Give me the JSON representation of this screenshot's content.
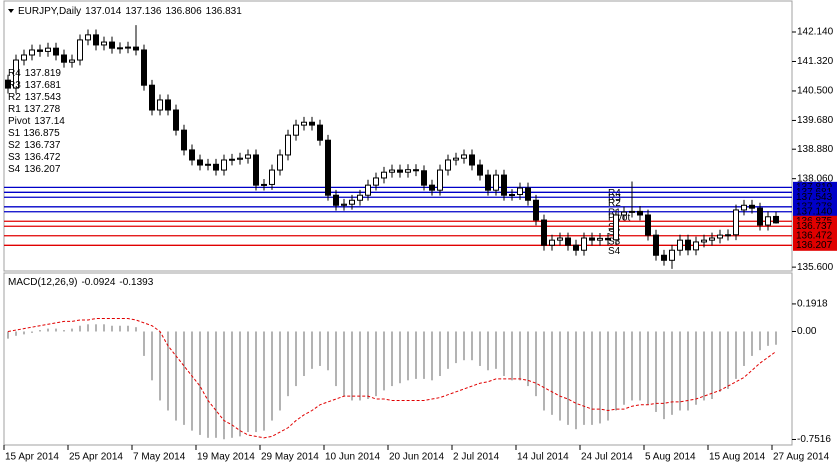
{
  "chart_data": [
    {
      "type": "candlestick",
      "symbol": "EURJPY,Daily",
      "info_values": [
        "137.014",
        "137.136",
        "136.806",
        "136.831"
      ],
      "open": [
        140.8,
        140.58,
        141.36,
        141.5,
        141.64,
        141.6,
        141.69,
        141.5,
        141.3,
        141.36,
        141.92,
        142.06,
        141.78,
        141.86,
        141.69,
        141.7,
        141.72,
        141.64,
        140.66,
        139.97,
        140.25,
        139.97,
        139.41,
        138.86,
        138.58,
        138.44,
        138.46,
        138.3,
        138.58,
        138.6,
        138.63,
        138.72,
        137.88,
        137.9,
        138.3,
        138.72,
        139.27,
        139.55,
        139.63,
        139.55,
        139.13,
        137.6,
        137.32,
        137.35,
        137.46,
        137.6,
        137.88,
        138.08,
        138.24,
        138.3,
        138.24,
        138.31,
        138.28,
        137.88,
        137.74,
        138.3,
        138.58,
        138.63,
        138.72,
        138.44,
        138.16,
        137.74,
        138.16,
        137.6,
        137.62,
        137.8,
        137.46,
        136.91,
        136.21,
        136.35,
        136.41,
        136.21,
        136.07,
        136.41,
        136.35,
        136.4,
        136.36,
        137.05,
        137.13,
        137.15,
        137.05,
        136.49,
        135.93,
        135.79,
        136.07,
        136.35,
        136.08,
        136.3,
        136.35,
        136.41,
        136.49,
        136.5,
        137.19,
        137.32,
        137.24,
        136.77,
        137.01
      ],
      "high": [
        140.95,
        141.51,
        141.65,
        141.79,
        141.79,
        141.84,
        141.84,
        141.65,
        141.51,
        142.07,
        142.21,
        142.21,
        142.01,
        142.01,
        141.85,
        141.87,
        142.33,
        141.79,
        140.81,
        140.4,
        140.4,
        140.12,
        139.56,
        139.01,
        138.73,
        138.61,
        138.61,
        138.73,
        138.75,
        138.78,
        138.87,
        138.87,
        138.05,
        138.45,
        138.87,
        139.42,
        139.7,
        139.78,
        139.78,
        139.7,
        139.28,
        137.75,
        137.5,
        137.61,
        137.75,
        138.03,
        138.23,
        138.39,
        138.45,
        138.45,
        138.46,
        138.46,
        138.43,
        138.03,
        138.45,
        138.73,
        138.78,
        138.87,
        138.87,
        138.59,
        138.31,
        138.31,
        138.31,
        137.77,
        137.95,
        137.95,
        137.61,
        137.06,
        136.5,
        136.56,
        136.56,
        136.36,
        136.56,
        136.56,
        136.55,
        136.55,
        137.2,
        137.28,
        137.98,
        137.3,
        137.2,
        136.64,
        136.08,
        136.22,
        136.5,
        136.5,
        136.45,
        136.5,
        136.56,
        136.64,
        136.65,
        137.34,
        137.47,
        137.47,
        137.39,
        137.15,
        137.14
      ],
      "low": [
        140.43,
        140.43,
        141.21,
        141.35,
        141.45,
        141.45,
        141.35,
        141.15,
        141.15,
        141.21,
        141.77,
        141.63,
        141.63,
        141.54,
        141.54,
        141.55,
        141.49,
        140.51,
        139.82,
        139.82,
        139.82,
        139.26,
        138.71,
        138.43,
        138.29,
        138.29,
        138.15,
        138.15,
        138.43,
        138.45,
        138.48,
        137.73,
        137.73,
        137.75,
        138.15,
        138.57,
        139.12,
        139.4,
        139.4,
        138.98,
        137.45,
        137.17,
        137.17,
        137.2,
        137.31,
        137.45,
        137.73,
        137.93,
        138.09,
        138.09,
        138.09,
        138.13,
        137.73,
        137.59,
        137.59,
        138.15,
        138.43,
        138.48,
        138.29,
        138.01,
        137.59,
        137.59,
        137.45,
        137.45,
        137.47,
        137.31,
        136.76,
        136.06,
        136.06,
        136.2,
        136.06,
        135.92,
        135.92,
        136.2,
        136.2,
        136.21,
        136.21,
        136.9,
        136.98,
        136.9,
        136.34,
        135.78,
        135.64,
        135.55,
        135.92,
        135.93,
        135.93,
        136.15,
        136.2,
        136.26,
        136.34,
        136.35,
        137.04,
        137.09,
        136.62,
        136.62,
        136.81
      ],
      "close": [
        140.58,
        141.36,
        141.5,
        141.64,
        141.6,
        141.69,
        141.5,
        141.3,
        141.36,
        141.92,
        142.06,
        141.78,
        141.86,
        141.69,
        141.7,
        141.72,
        141.64,
        140.66,
        139.97,
        140.25,
        139.97,
        139.41,
        138.86,
        138.58,
        138.44,
        138.46,
        138.3,
        138.58,
        138.6,
        138.63,
        138.72,
        137.88,
        137.9,
        138.3,
        138.72,
        139.27,
        139.55,
        139.63,
        139.55,
        139.13,
        137.6,
        137.32,
        137.35,
        137.46,
        137.6,
        137.88,
        138.08,
        138.24,
        138.3,
        138.24,
        138.31,
        138.28,
        137.88,
        137.74,
        138.3,
        138.58,
        138.63,
        138.72,
        138.44,
        138.16,
        137.74,
        138.16,
        137.6,
        137.62,
        137.8,
        137.46,
        136.91,
        136.21,
        136.35,
        136.41,
        136.21,
        136.07,
        136.41,
        136.35,
        136.4,
        136.36,
        137.05,
        137.13,
        137.15,
        137.05,
        136.49,
        135.93,
        135.79,
        136.07,
        136.35,
        136.08,
        136.3,
        136.35,
        136.41,
        136.49,
        136.5,
        137.19,
        137.32,
        137.24,
        136.77,
        137.0,
        136.83
      ],
      "up_color": "#ffffff",
      "down_color": "#000000",
      "ylim": [
        135.52,
        143.03
      ],
      "yticks": [
        {
          "value": 142.14,
          "label": "142.140"
        },
        {
          "value": 141.32,
          "label": "141.320"
        },
        {
          "value": 140.5,
          "label": "140.500"
        },
        {
          "value": 139.68,
          "label": "139.680"
        },
        {
          "value": 138.88,
          "label": "138.880"
        },
        {
          "value": 138.06,
          "label": "138.060"
        },
        {
          "value": 135.6,
          "label": "135.600"
        }
      ],
      "xticks": [
        {
          "value": 0,
          "label": "15 Apr 2014"
        },
        {
          "value": 8,
          "label": "25 Apr 2014"
        },
        {
          "value": 16,
          "label": "7 May 2014"
        },
        {
          "value": 24,
          "label": "19 May 2014"
        },
        {
          "value": 32,
          "label": "29 May 2014"
        },
        {
          "value": 40,
          "label": "10 Jun 2014"
        },
        {
          "value": 48,
          "label": "20 Jun 2014"
        },
        {
          "value": 56,
          "label": "2 Jul 2014"
        },
        {
          "value": 64,
          "label": "14 Jul 2014"
        },
        {
          "value": 72,
          "label": "24 Jul 2014"
        },
        {
          "value": 80,
          "label": "5 Aug 2014"
        },
        {
          "value": 88,
          "label": "15 Aug 2014"
        },
        {
          "value": 96,
          "label": "27 Aug 2014"
        }
      ],
      "pivots": [
        {
          "name": "R4",
          "value": 137.819,
          "color": "#0000c8"
        },
        {
          "name": "R3",
          "value": 137.681,
          "color": "#0000c8"
        },
        {
          "name": "R2",
          "value": 137.543,
          "color": "#0000c8"
        },
        {
          "name": "R1",
          "value": 137.278,
          "color": "#0000c8"
        },
        {
          "name": "Pivot",
          "value": 137.14,
          "axis_label": "137.140",
          "color": "#0000c8"
        },
        {
          "name": "S1",
          "value": 136.875,
          "color": "#e00000"
        },
        {
          "name": "S2",
          "value": 136.737,
          "color": "#e00000"
        },
        {
          "name": "S3",
          "value": 136.472,
          "color": "#e00000"
        },
        {
          "name": "S4",
          "value": 136.207,
          "color": "#e00000"
        }
      ]
    },
    {
      "type": "macd",
      "title": "MACD(12,26,9)",
      "info_values": [
        "-0.0924",
        "-0.1393"
      ],
      "histogram": [
        -0.05,
        -0.03,
        -0.02,
        -0.01,
        0.01,
        0.02,
        0.02,
        0.01,
        0.02,
        0.04,
        0.05,
        0.05,
        0.05,
        0.04,
        0.04,
        0.04,
        0.03,
        -0.17,
        -0.34,
        -0.48,
        -0.55,
        -0.62,
        -0.65,
        -0.69,
        -0.72,
        -0.74,
        -0.74,
        -0.75,
        -0.74,
        -0.73,
        -0.7,
        -0.7,
        -0.69,
        -0.62,
        -0.55,
        -0.45,
        -0.38,
        -0.31,
        -0.26,
        -0.24,
        -0.27,
        -0.38,
        -0.45,
        -0.48,
        -0.48,
        -0.47,
        -0.45,
        -0.41,
        -0.38,
        -0.36,
        -0.34,
        -0.33,
        -0.33,
        -0.34,
        -0.31,
        -0.26,
        -0.22,
        -0.2,
        -0.2,
        -0.24,
        -0.27,
        -0.26,
        -0.31,
        -0.34,
        -0.34,
        -0.38,
        -0.45,
        -0.55,
        -0.58,
        -0.62,
        -0.65,
        -0.68,
        -0.65,
        -0.65,
        -0.64,
        -0.62,
        -0.55,
        -0.51,
        -0.48,
        -0.48,
        -0.51,
        -0.56,
        -0.61,
        -0.58,
        -0.55,
        -0.55,
        -0.51,
        -0.48,
        -0.47,
        -0.42,
        -0.4,
        -0.33,
        -0.24,
        -0.17,
        -0.13,
        -0.1,
        -0.0924
      ],
      "signal": [
        0.0,
        0.01,
        0.02,
        0.03,
        0.04,
        0.05,
        0.06,
        0.07,
        0.07,
        0.08,
        0.08,
        0.09,
        0.09,
        0.09,
        0.09,
        0.09,
        0.08,
        0.06,
        0.04,
        0.0,
        -0.1,
        -0.17,
        -0.24,
        -0.31,
        -0.38,
        -0.48,
        -0.55,
        -0.62,
        -0.65,
        -0.69,
        -0.72,
        -0.73,
        -0.74,
        -0.73,
        -0.7,
        -0.67,
        -0.62,
        -0.58,
        -0.55,
        -0.51,
        -0.49,
        -0.47,
        -0.45,
        -0.45,
        -0.45,
        -0.45,
        -0.47,
        -0.47,
        -0.48,
        -0.48,
        -0.48,
        -0.48,
        -0.48,
        -0.47,
        -0.46,
        -0.44,
        -0.42,
        -0.4,
        -0.38,
        -0.36,
        -0.35,
        -0.33,
        -0.33,
        -0.33,
        -0.33,
        -0.34,
        -0.36,
        -0.39,
        -0.42,
        -0.45,
        -0.47,
        -0.5,
        -0.52,
        -0.54,
        -0.54,
        -0.55,
        -0.54,
        -0.54,
        -0.52,
        -0.51,
        -0.51,
        -0.5,
        -0.5,
        -0.49,
        -0.49,
        -0.48,
        -0.47,
        -0.45,
        -0.43,
        -0.41,
        -0.38,
        -0.35,
        -0.32,
        -0.27,
        -0.22,
        -0.18,
        -0.1393
      ],
      "histogram_color": "#808080",
      "signal_color": "#e00000",
      "ylim": [
        -0.79,
        0.4
      ],
      "yticks": [
        0.1918,
        {
          "value": 0,
          "label": "0.00"
        },
        -0.7516
      ]
    }
  ]
}
